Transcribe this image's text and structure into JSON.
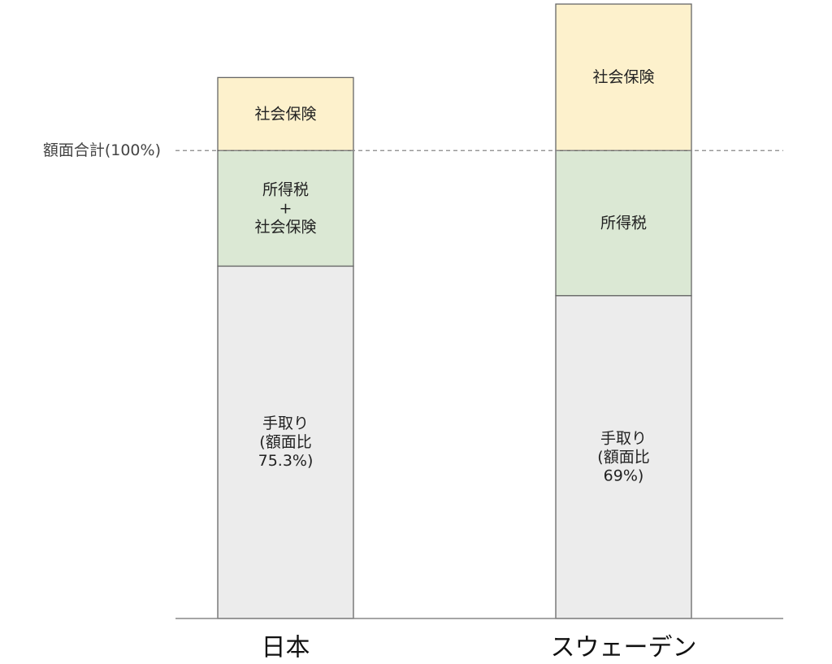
{
  "chart_data": {
    "type": "bar",
    "stacked": true,
    "categories": [
      "日本",
      "スウェーデン"
    ],
    "series": [
      {
        "key": "take_home",
        "values": [
          75.3,
          69
        ],
        "labels": [
          [
            "手取り",
            "(額面比",
            "75.3%)"
          ],
          [
            "手取り",
            "(額面比",
            "69%)"
          ]
        ],
        "color": "#ececec"
      },
      {
        "key": "tax",
        "values": [
          24.7,
          31
        ],
        "labels": [
          [
            "所得税",
            "+",
            "社会保険"
          ],
          [
            "所得税"
          ]
        ],
        "color": "#dbe8d4"
      },
      {
        "key": "social_insurance",
        "values": [
          15.6,
          31.3
        ],
        "labels": [
          [
            "社会保険"
          ],
          [
            "社会保険"
          ]
        ],
        "color": "#fdf1cc"
      }
    ],
    "reference_line": {
      "value": 100,
      "label": "額面合計(100%)",
      "style": "dashed"
    },
    "ylim": [
      0,
      131.3
    ],
    "grid": false,
    "legend": "none",
    "xlabel": "",
    "ylabel": ""
  },
  "colors": {
    "bar_outline": "#666666",
    "axis": "#888888",
    "reference_line": "#888888"
  }
}
